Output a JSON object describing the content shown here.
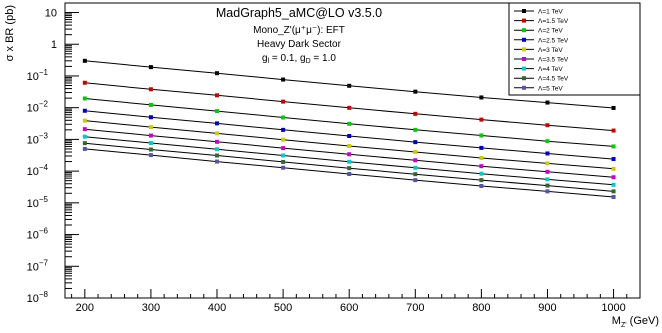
{
  "chart_data": {
    "type": "line",
    "title_lines": [
      "MadGraph5_aMC@LO v3.5.0",
      "Mono_Z'(μ⁺μ⁻): EFT",
      "Heavy Dark Sector"
    ],
    "coupling_label": {
      "g_l": "g",
      "g_l_sub": "l",
      "g_l_val": " = 0.1, ",
      "g_d": "g",
      "g_d_sub": "D",
      "g_d_val": " = 1.0"
    },
    "xlabel": {
      "main": "M",
      "sub": "Z'",
      "unit": " (GeV)"
    },
    "ylabel": "σ x BR (pb)",
    "x_ticks": [
      200,
      300,
      400,
      500,
      600,
      700,
      800,
      900,
      1000
    ],
    "xlim": [
      170,
      1040
    ],
    "ylim_log10": [
      -8,
      1.3
    ],
    "y_scale": "log",
    "y_tick_labels": [
      {
        "exp": 1,
        "base": "10",
        "sup": ""
      },
      {
        "exp": 0,
        "base": "1",
        "sup": ""
      },
      {
        "exp": -1,
        "base": "10",
        "sup": "−1"
      },
      {
        "exp": -2,
        "base": "10",
        "sup": "−2"
      },
      {
        "exp": -3,
        "base": "10",
        "sup": "−3"
      },
      {
        "exp": -4,
        "base": "10",
        "sup": "−4"
      },
      {
        "exp": -5,
        "base": "10",
        "sup": "−5"
      },
      {
        "exp": -6,
        "base": "10",
        "sup": "−6"
      },
      {
        "exp": -7,
        "base": "10",
        "sup": "−7"
      },
      {
        "exp": -8,
        "base": "10",
        "sup": "−8"
      }
    ],
    "legend_placement": "top-right",
    "grid": false,
    "x": [
      200,
      300,
      400,
      500,
      600,
      700,
      800,
      900,
      1000
    ],
    "series": [
      {
        "name": "Λ=1 TeV",
        "color": "#000000",
        "values": [
          0.3,
          0.19,
          0.122,
          0.077,
          0.049,
          0.032,
          0.021,
          0.0145,
          0.0098
        ]
      },
      {
        "name": "Λ=1.5 TeV",
        "color": "#cc0000",
        "values": [
          0.061,
          0.038,
          0.0245,
          0.0155,
          0.0099,
          0.0064,
          0.0042,
          0.0028,
          0.0019
        ]
      },
      {
        "name": "Λ=2 TeV",
        "color": "#00cc00",
        "values": [
          0.0195,
          0.0122,
          0.0078,
          0.0049,
          0.0031,
          0.002,
          0.00133,
          0.00088,
          0.0006
        ]
      },
      {
        "name": "Λ=2.5 TeV",
        "color": "#0000cc",
        "values": [
          0.008,
          0.005,
          0.0032,
          0.002,
          0.00128,
          0.00082,
          0.00054,
          0.00036,
          0.00024
        ]
      },
      {
        "name": "Λ=3 TeV",
        "color": "#cccc00",
        "values": [
          0.0039,
          0.00245,
          0.00155,
          0.00098,
          0.00062,
          0.0004,
          0.00026,
          0.000175,
          0.000118
        ]
      },
      {
        "name": "Λ=3.5 TeV",
        "color": "#cc00cc",
        "values": [
          0.0021,
          0.00132,
          0.00084,
          0.00053,
          0.00034,
          0.00022,
          0.000143,
          9.5e-05,
          6.4e-05
        ]
      },
      {
        "name": "Λ=4 TeV",
        "color": "#00cccc",
        "values": [
          0.00122,
          0.00077,
          0.00049,
          0.00031,
          0.000197,
          0.000127,
          8.3e-05,
          5.5e-05,
          3.7e-05
        ]
      },
      {
        "name": "Λ=4.5 TeV",
        "color": "#336633",
        "values": [
          0.00076,
          0.00048,
          0.00031,
          0.000195,
          0.000124,
          8e-05,
          5.2e-05,
          3.5e-05,
          2.3e-05
        ]
      },
      {
        "name": "Λ=5 TeV",
        "color": "#5555aa",
        "values": [
          0.0005,
          0.00032,
          0.0002,
          0.000128,
          8.1e-05,
          5.2e-05,
          3.4e-05,
          2.3e-05,
          1.53e-05
        ]
      }
    ]
  }
}
